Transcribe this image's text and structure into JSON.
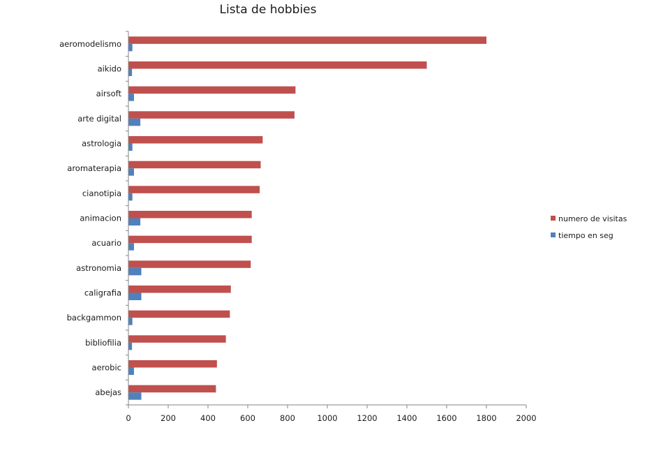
{
  "chart_data": {
    "type": "bar",
    "orientation": "horizontal",
    "title": "Lista de hobbies",
    "xlabel": "",
    "ylabel": "",
    "categories": [
      "aeromodelismo",
      "aikido",
      "airsoft",
      "arte digital",
      "astrologia",
      "aromaterapia",
      "cianotipia",
      "animacion",
      "acuario",
      "astronomia",
      "caligrafia",
      "backgammon",
      "bibliofilia",
      "aerobic",
      "abejas"
    ],
    "series": [
      {
        "name": "numero de visitas",
        "color": "#c0504d",
        "values": [
          1800,
          1500,
          840,
          835,
          675,
          665,
          660,
          620,
          620,
          615,
          515,
          510,
          490,
          445,
          440
        ]
      },
      {
        "name": "tiempo en seg",
        "color": "#4f81bd",
        "values": [
          20,
          18,
          28,
          60,
          20,
          28,
          20,
          60,
          28,
          65,
          65,
          20,
          18,
          28,
          65
        ]
      }
    ],
    "xlim": [
      0,
      2000
    ],
    "xticks": [
      0,
      200,
      400,
      600,
      800,
      1000,
      1200,
      1400,
      1600,
      1800,
      2000
    ],
    "grid": false,
    "legend_position": "right"
  }
}
